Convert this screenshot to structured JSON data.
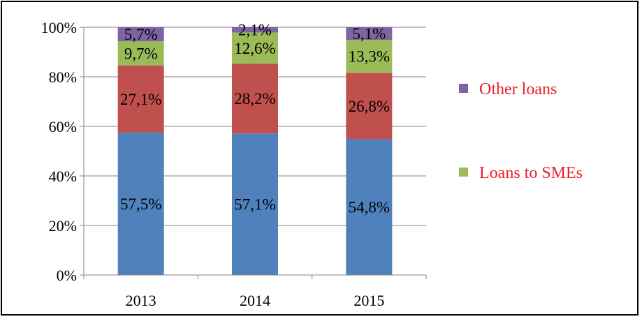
{
  "chart_data": {
    "type": "bar",
    "stacked": true,
    "percent_stacked": true,
    "categories": [
      "2013",
      "2014",
      "2015"
    ],
    "series": [
      {
        "name": "",
        "values": [
          57.5,
          57.1,
          54.8
        ],
        "labels": [
          "57,5%",
          "57,1%",
          "54,8%"
        ],
        "color": "#4F81BD"
      },
      {
        "name": "",
        "values": [
          27.1,
          28.2,
          26.8
        ],
        "labels": [
          "27,1%",
          "28,2%",
          "26,8%"
        ],
        "color": "#C0504D"
      },
      {
        "name": "Loans to SMEs",
        "values": [
          9.7,
          12.6,
          13.3
        ],
        "labels": [
          "9,7%",
          "12,6%",
          "13,3%"
        ],
        "color": "#9BBB59"
      },
      {
        "name": "Other loans",
        "values": [
          5.7,
          2.1,
          5.1
        ],
        "labels": [
          "5,7%",
          "2,1%",
          "5,1%"
        ],
        "color": "#8064A2"
      }
    ],
    "ylim": [
      0,
      100
    ],
    "yticks": [
      "0%",
      "20%",
      "40%",
      "60%",
      "80%",
      "100%"
    ],
    "grid": true,
    "legend_position": "right",
    "legend_text_color": "#E8202A",
    "legend_order": [
      3,
      2
    ]
  }
}
